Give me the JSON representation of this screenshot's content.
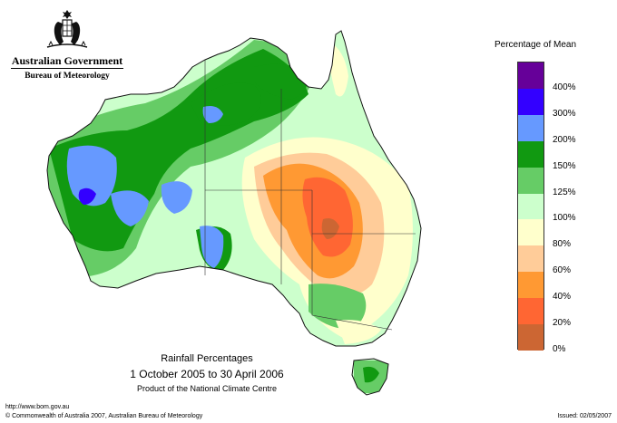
{
  "header": {
    "government": "Australian Government",
    "bureau": "Bureau of Meteorology"
  },
  "legend": {
    "title": "Percentage of Mean",
    "bands": [
      {
        "label": "400%",
        "color": "#660099"
      },
      {
        "label": "300%",
        "color": "#3300ff"
      },
      {
        "label": "200%",
        "color": "#6699ff"
      },
      {
        "label": "150%",
        "color": "#119911"
      },
      {
        "label": "125%",
        "color": "#66cc66"
      },
      {
        "label": "100%",
        "color": "#ccffcc"
      },
      {
        "label": "80%",
        "color": "#ffffcc"
      },
      {
        "label": "60%",
        "color": "#ffcc99"
      },
      {
        "label": "40%",
        "color": "#ff9933"
      },
      {
        "label": "20%",
        "color": "#ff6633"
      },
      {
        "label": "0%",
        "color": "#cc6633"
      }
    ]
  },
  "caption": {
    "title": "Rainfall Percentages",
    "dates": "1 October 2005 to 30 April 2006",
    "credit": "Product of the National Climate Centre"
  },
  "footer": {
    "url": "http://www.bom.gov.au",
    "copyright": "© Commonwealth of Australia 2007, Australian Bureau of Meteorology",
    "issued": "Issued: 02/05/2007"
  }
}
